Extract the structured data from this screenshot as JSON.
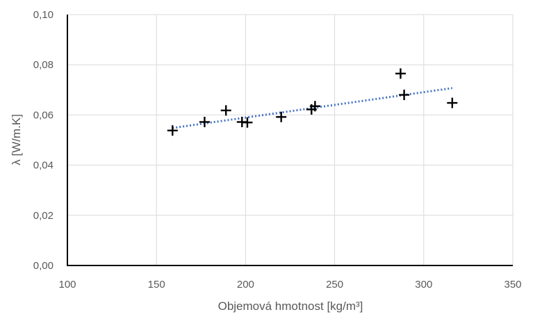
{
  "chart_data": {
    "type": "scatter",
    "title": "",
    "xlabel": "Objemová hmotnost [kg/m³]",
    "ylabel": "λ [W/m.K]",
    "xlim": [
      100,
      350
    ],
    "ylim": [
      0,
      0.1
    ],
    "x_ticks": [
      100,
      150,
      200,
      250,
      300,
      350
    ],
    "y_ticks": [
      0,
      0.02,
      0.04,
      0.06,
      0.08,
      0.1
    ],
    "x_tick_labels": [
      "100",
      "150",
      "200",
      "250",
      "300",
      "350"
    ],
    "y_tick_labels": [
      "0,00",
      "0,02",
      "0,04",
      "0,06",
      "0,08",
      "0,10"
    ],
    "grid": true,
    "legend": "none",
    "series": [
      {
        "marker": "plus",
        "color": "#000000",
        "points": [
          {
            "x": 159,
            "y": 0.0538
          },
          {
            "x": 177,
            "y": 0.0572
          },
          {
            "x": 189,
            "y": 0.0618
          },
          {
            "x": 198,
            "y": 0.0572
          },
          {
            "x": 201,
            "y": 0.057
          },
          {
            "x": 220,
            "y": 0.0592
          },
          {
            "x": 237,
            "y": 0.0622
          },
          {
            "x": 239,
            "y": 0.0635
          },
          {
            "x": 287,
            "y": 0.0765
          },
          {
            "x": 289,
            "y": 0.068
          },
          {
            "x": 316,
            "y": 0.0648
          }
        ]
      }
    ],
    "trendline": {
      "type": "linear",
      "style": "dotted",
      "color": "#4472c4",
      "x_start": 159,
      "x_end": 316,
      "y_start": 0.0548,
      "y_end": 0.0707
    }
  }
}
